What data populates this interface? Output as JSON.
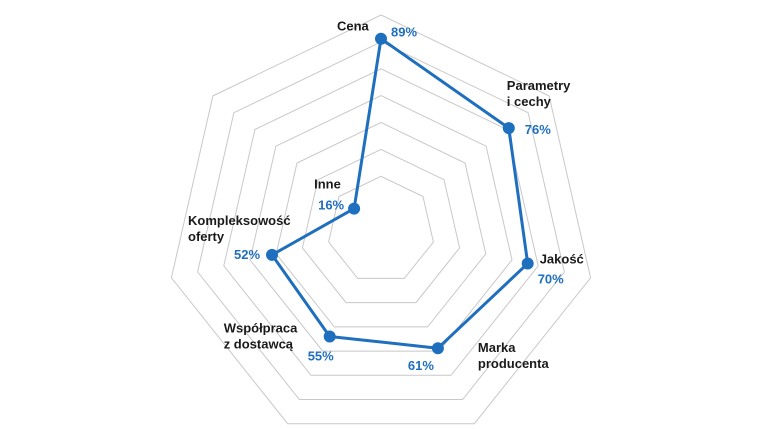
{
  "chart_data": {
    "type": "radar",
    "title": "",
    "categories": [
      "Cena",
      "Parametry\ni cechy",
      "Jakość",
      "Marka\nproducenta",
      "Współpraca\nz dostawcą",
      "Kompleksowość\noferty",
      "Inne"
    ],
    "values": [
      89,
      76,
      70,
      61,
      55,
      52,
      16
    ],
    "value_labels": [
      "89%",
      "76%",
      "70%",
      "61%",
      "55%",
      "52%",
      "16%"
    ],
    "range": [
      0,
      100
    ],
    "rings": 7,
    "grid": true,
    "colors": {
      "series": "#1f6fbf",
      "grid": "#c8c8c8",
      "label": "#1a1a1a"
    }
  }
}
